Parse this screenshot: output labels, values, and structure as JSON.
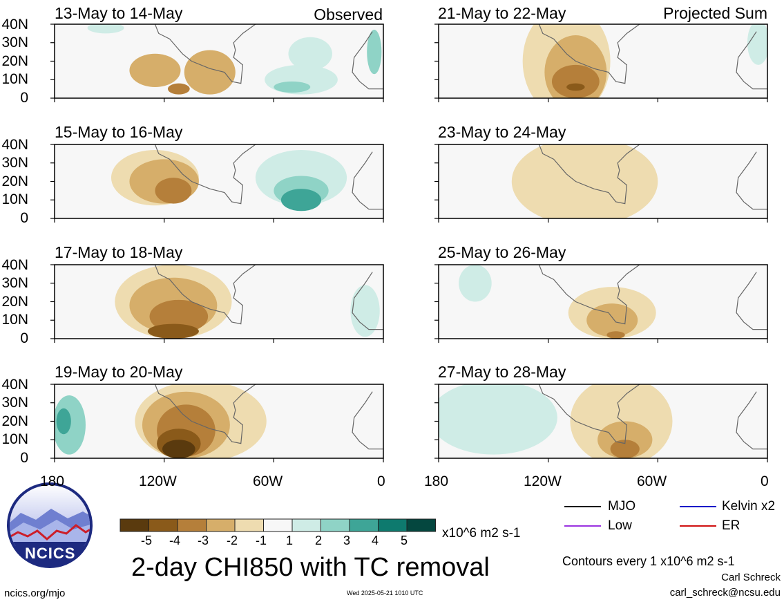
{
  "panel_tags": {
    "left": "Observed",
    "right": "Projected Sum"
  },
  "y_ticks": [
    "40N",
    "30N",
    "20N",
    "10N",
    "0"
  ],
  "x_ticks": [
    "180",
    "120W",
    "60W",
    "0"
  ],
  "legend": {
    "mjo": "MJO",
    "kelvin": "Kelvin x2",
    "low": "Low",
    "er": "ER",
    "contour_note": "Contours every 1 x10^6 m2 s-1",
    "colors": {
      "mjo": "#000000",
      "kelvin": "#1010c8",
      "low": "#9a32e0",
      "er": "#d01010"
    }
  },
  "colorbar": {
    "ticks": [
      "-5",
      "-4",
      "-3",
      "-2",
      "-1",
      "1",
      "2",
      "3",
      "4",
      "5"
    ],
    "units": "x10^6 m2 s-1",
    "colors": [
      "#5a3a0e",
      "#8a5a1a",
      "#b57f3a",
      "#d6ae6a",
      "#eedcb0",
      "#f7f7f7",
      "#cfece6",
      "#8fd3c6",
      "#3ea597",
      "#0e7a6e",
      "#04473f"
    ]
  },
  "title": "2-day CHI850 with TC removal",
  "logo_text": "NCICS",
  "footer": {
    "left": "ncics.org/mjo",
    "center": "Wed 2025-05-21 1010 UTC",
    "author": "Carl Schreck",
    "email": "carl_schreck@ncsu.edu"
  },
  "chart_data": {
    "type": "heatmap",
    "variable": "2-day CHI850 with TC removal",
    "units": "x10^6 m2 s-1",
    "levels": [
      -5,
      -4,
      -3,
      -2,
      -1,
      1,
      2,
      3,
      4,
      5
    ],
    "x_range": [
      "180",
      "0"
    ],
    "y_range": [
      "0",
      "40N"
    ],
    "panels": [
      {
        "title": "13-May to 14-May",
        "type": "Observed",
        "blobs": [
          {
            "lon": -125,
            "lat": 15,
            "rx": 14,
            "ry": 9,
            "v": -2
          },
          {
            "lon": -95,
            "lat": 14,
            "rx": 14,
            "ry": 12,
            "v": -2
          },
          {
            "lon": -112,
            "lat": 5,
            "rx": 6,
            "ry": 3,
            "v": -3
          },
          {
            "lon": -40,
            "lat": 24,
            "rx": 12,
            "ry": 9,
            "v": 1
          },
          {
            "lon": -45,
            "lat": 10,
            "rx": 20,
            "ry": 8,
            "v": 1
          },
          {
            "lon": -50,
            "lat": 6,
            "rx": 10,
            "ry": 3,
            "v": 2
          },
          {
            "lon": -152,
            "lat": 38,
            "rx": 10,
            "ry": 3,
            "v": 1
          },
          {
            "lon": -5,
            "lat": 25,
            "rx": 4,
            "ry": 12,
            "v": 2
          }
        ]
      },
      {
        "title": "15-May to 16-May",
        "type": "Observed",
        "blobs": [
          {
            "lon": -125,
            "lat": 22,
            "rx": 24,
            "ry": 15,
            "v": -1
          },
          {
            "lon": -120,
            "lat": 20,
            "rx": 19,
            "ry": 12,
            "v": -2
          },
          {
            "lon": -115,
            "lat": 15,
            "rx": 10,
            "ry": 7,
            "v": -3
          },
          {
            "lon": -45,
            "lat": 22,
            "rx": 25,
            "ry": 15,
            "v": 1
          },
          {
            "lon": -45,
            "lat": 15,
            "rx": 15,
            "ry": 8,
            "v": 2
          },
          {
            "lon": -45,
            "lat": 10,
            "rx": 11,
            "ry": 6,
            "v": 3
          }
        ]
      },
      {
        "title": "17-May to 18-May",
        "type": "Observed",
        "blobs": [
          {
            "lon": -115,
            "lat": 20,
            "rx": 32,
            "ry": 20,
            "v": -1
          },
          {
            "lon": -115,
            "lat": 18,
            "rx": 24,
            "ry": 15,
            "v": -2
          },
          {
            "lon": -112,
            "lat": 12,
            "rx": 16,
            "ry": 9,
            "v": -3
          },
          {
            "lon": -115,
            "lat": 4,
            "rx": 14,
            "ry": 4,
            "v": -4
          },
          {
            "lon": -10,
            "lat": 15,
            "rx": 8,
            "ry": 14,
            "v": 1
          }
        ]
      },
      {
        "title": "19-May to 20-May",
        "type": "Observed",
        "blobs": [
          {
            "lon": -100,
            "lat": 20,
            "rx": 36,
            "ry": 22,
            "v": -1
          },
          {
            "lon": -108,
            "lat": 18,
            "rx": 24,
            "ry": 18,
            "v": -2
          },
          {
            "lon": -108,
            "lat": 15,
            "rx": 16,
            "ry": 14,
            "v": -3
          },
          {
            "lon": -112,
            "lat": 8,
            "rx": 12,
            "ry": 8,
            "v": -4
          },
          {
            "lon": -112,
            "lat": 5,
            "rx": 9,
            "ry": 5,
            "v": -5
          },
          {
            "lon": -172,
            "lat": 18,
            "rx": 9,
            "ry": 16,
            "v": 2
          },
          {
            "lon": -175,
            "lat": 20,
            "rx": 4,
            "ry": 7,
            "v": 3
          }
        ]
      },
      {
        "title": "21-May to 22-May",
        "type": "Projected Sum",
        "blobs": [
          {
            "lon": -110,
            "lat": 20,
            "rx": 24,
            "ry": 30,
            "v": -1
          },
          {
            "lon": -105,
            "lat": 14,
            "rx": 17,
            "ry": 20,
            "v": -2
          },
          {
            "lon": -105,
            "lat": 9,
            "rx": 13,
            "ry": 9,
            "v": -3
          },
          {
            "lon": -105,
            "lat": 6,
            "rx": 5,
            "ry": 2,
            "v": -4
          },
          {
            "lon": -5,
            "lat": 30,
            "rx": 6,
            "ry": 12,
            "v": 1
          }
        ]
      },
      {
        "title": "23-May to 24-May",
        "type": "Projected Sum",
        "blobs": [
          {
            "lon": -100,
            "lat": 20,
            "rx": 40,
            "ry": 24,
            "v": -1
          }
        ]
      },
      {
        "title": "25-May to 26-May",
        "type": "Projected Sum",
        "blobs": [
          {
            "lon": -85,
            "lat": 14,
            "rx": 24,
            "ry": 14,
            "v": -1
          },
          {
            "lon": -85,
            "lat": 10,
            "rx": 14,
            "ry": 9,
            "v": -2
          },
          {
            "lon": -83,
            "lat": 2,
            "rx": 5,
            "ry": 2,
            "v": -3
          },
          {
            "lon": -160,
            "lat": 30,
            "rx": 9,
            "ry": 10,
            "v": 1
          }
        ]
      },
      {
        "title": "27-May to 28-May",
        "type": "Projected Sum",
        "blobs": [
          {
            "lon": -150,
            "lat": 22,
            "rx": 35,
            "ry": 20,
            "v": 1
          },
          {
            "lon": -80,
            "lat": 20,
            "rx": 28,
            "ry": 24,
            "v": -1
          },
          {
            "lon": -78,
            "lat": 10,
            "rx": 15,
            "ry": 10,
            "v": -2
          },
          {
            "lon": -78,
            "lat": 5,
            "rx": 8,
            "ry": 5,
            "v": -3
          }
        ]
      }
    ]
  }
}
